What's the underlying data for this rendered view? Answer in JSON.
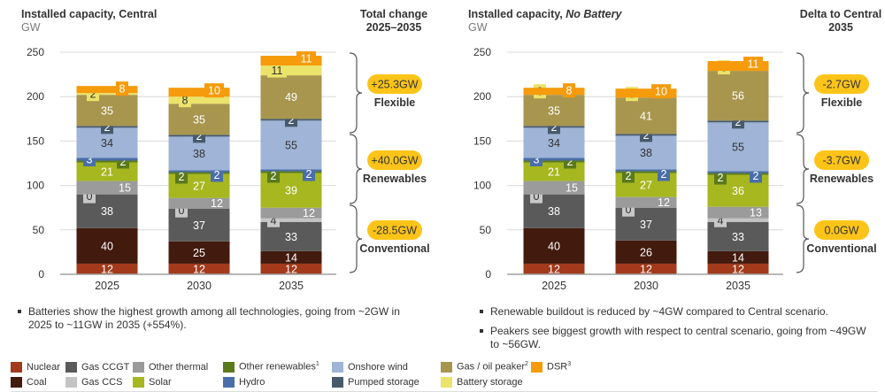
{
  "panels": [
    {
      "title_main": "Installed capacity, ",
      "title_scenario": "Central",
      "title_italic": false,
      "unit": "GW",
      "right_title_line1": "Total change",
      "right_title_line2": "2025–2035",
      "groups": [
        {
          "value": "+25.3GW",
          "label": "Flexible"
        },
        {
          "value": "+40.0GW",
          "label": "Renewables"
        },
        {
          "value": "-28.5GW",
          "label": "Conventional"
        }
      ],
      "bullets": [
        "Batteries show the highest growth among all technologies, going from ~2GW in 2025 to ~11GW in 2035 (+554%)."
      ]
    },
    {
      "title_main": "Installed capacity, ",
      "title_scenario": "No Battery",
      "title_italic": true,
      "unit": "GW",
      "right_title_line1": "Delta to Central",
      "right_title_line2": "2035",
      "groups": [
        {
          "value": "-2.7GW",
          "label": "Flexible"
        },
        {
          "value": "-3.7GW",
          "label": "Renewables"
        },
        {
          "value": "0.0GW",
          "label": "Conventional"
        }
      ],
      "bullets": [
        "Renewable buildout is reduced by ~4GW compared to Central scenario.",
        "Peakers see biggest growth with respect to central scenario, going from ~49GW to ~56GW."
      ]
    }
  ],
  "legend": {
    "row1": [
      {
        "key": "nuclear",
        "label": "Nuclear",
        "sup": ""
      },
      {
        "key": "gas_ccgt",
        "label": "Gas CCGT",
        "sup": ""
      },
      {
        "key": "other_thermal",
        "label": "Other thermal",
        "sup": ""
      },
      {
        "key": "other_renewables",
        "label": "Other renewables",
        "sup": "1"
      },
      {
        "key": "onshore_wind",
        "label": "Onshore wind",
        "sup": ""
      },
      {
        "key": "gas_oil_peaker",
        "label": "Gas / oil peaker",
        "sup": "2"
      },
      {
        "key": "dsr",
        "label": "DSR",
        "sup": "3"
      }
    ],
    "row2": [
      {
        "key": "coal",
        "label": "Coal",
        "sup": ""
      },
      {
        "key": "gas_ccs",
        "label": "Gas CCS",
        "sup": ""
      },
      {
        "key": "solar",
        "label": "Solar",
        "sup": ""
      },
      {
        "key": "hydro",
        "label": "Hydro",
        "sup": ""
      },
      {
        "key": "pumped_storage",
        "label": "Pumped storage",
        "sup": ""
      },
      {
        "key": "battery_storage",
        "label": "Battery storage",
        "sup": ""
      }
    ]
  },
  "colors": {
    "nuclear": "#a23a1b",
    "coal": "#431a0e",
    "gas_ccgt": "#5a5a5a",
    "gas_ccs": "#c4c4c4",
    "other_thermal": "#9b9b9b",
    "solar": "#a6b71f",
    "other_renewables": "#5b7a1c",
    "hydro": "#4a6ea9",
    "onshore_wind": "#9fb4d6",
    "pumped_storage": "#475a6b",
    "gas_oil_peaker": "#a8964f",
    "battery_storage": "#ebe36a",
    "dsr": "#f59b0c",
    "badge": "#fcc419",
    "grid": "#d9d9d9",
    "axis": "#a0a0a0"
  },
  "chart_data": [
    {
      "type": "bar",
      "stacked": true,
      "title": "Installed capacity, Central",
      "ylabel": "GW",
      "xlabel": "",
      "categories": [
        "2025",
        "2030",
        "2035"
      ],
      "ylim": [
        0,
        250
      ],
      "yticks": [
        0,
        50,
        100,
        150,
        200,
        250
      ],
      "grid": true,
      "series": [
        {
          "key": "nuclear",
          "name": "Nuclear",
          "values": [
            12,
            12,
            12
          ]
        },
        {
          "key": "coal",
          "name": "Coal",
          "values": [
            40,
            25,
            14
          ]
        },
        {
          "key": "gas_ccgt",
          "name": "Gas CCGT",
          "values": [
            38,
            37,
            33
          ]
        },
        {
          "key": "gas_ccs",
          "name": "Gas CCS",
          "values": [
            0,
            0,
            4
          ]
        },
        {
          "key": "other_thermal",
          "name": "Other thermal",
          "values": [
            15,
            12,
            12
          ]
        },
        {
          "key": "solar",
          "name": "Solar",
          "values": [
            21,
            27,
            39
          ]
        },
        {
          "key": "other_renewables",
          "name": "Other renewables",
          "values": [
            2,
            2,
            2
          ]
        },
        {
          "key": "hydro",
          "name": "Hydro",
          "values": [
            3,
            2,
            2
          ]
        },
        {
          "key": "onshore_wind",
          "name": "Onshore wind",
          "values": [
            34,
            38,
            55
          ]
        },
        {
          "key": "pumped_storage",
          "name": "Pumped storage",
          "values": [
            2,
            2,
            2
          ]
        },
        {
          "key": "gas_oil_peaker",
          "name": "Gas / oil peaker",
          "values": [
            35,
            35,
            49
          ]
        },
        {
          "key": "battery_storage",
          "name": "Battery storage",
          "values": [
            2,
            8,
            11
          ]
        },
        {
          "key": "dsr",
          "name": "DSR",
          "values": [
            8,
            10,
            11
          ]
        }
      ]
    },
    {
      "type": "bar",
      "stacked": true,
      "title": "Installed capacity, No Battery",
      "ylabel": "GW",
      "xlabel": "",
      "categories": [
        "2025",
        "2030",
        "2035"
      ],
      "ylim": [
        0,
        250
      ],
      "yticks": [
        0,
        50,
        100,
        150,
        200,
        250
      ],
      "grid": true,
      "series": [
        {
          "key": "nuclear",
          "name": "Nuclear",
          "values": [
            12,
            12,
            12
          ]
        },
        {
          "key": "coal",
          "name": "Coal",
          "values": [
            40,
            26,
            14
          ]
        },
        {
          "key": "gas_ccgt",
          "name": "Gas CCGT",
          "values": [
            38,
            37,
            33
          ]
        },
        {
          "key": "gas_ccs",
          "name": "Gas CCS",
          "values": [
            0,
            0,
            4
          ]
        },
        {
          "key": "other_thermal",
          "name": "Other thermal",
          "values": [
            15,
            12,
            13
          ]
        },
        {
          "key": "solar",
          "name": "Solar",
          "values": [
            21,
            27,
            36
          ]
        },
        {
          "key": "other_renewables",
          "name": "Other renewables",
          "values": [
            2,
            2,
            2
          ]
        },
        {
          "key": "hydro",
          "name": "Hydro",
          "values": [
            3,
            2,
            2
          ]
        },
        {
          "key": "onshore_wind",
          "name": "Onshore wind",
          "values": [
            34,
            38,
            55
          ]
        },
        {
          "key": "pumped_storage",
          "name": "Pumped storage",
          "values": [
            2,
            2,
            2
          ]
        },
        {
          "key": "gas_oil_peaker",
          "name": "Gas / oil peaker",
          "values": [
            35,
            41,
            56
          ]
        },
        {
          "key": "battery_storage",
          "name": "Battery storage",
          "values": [
            0,
            0,
            0
          ]
        },
        {
          "key": "dsr",
          "name": "DSR",
          "values": [
            8,
            10,
            11
          ]
        }
      ]
    }
  ]
}
